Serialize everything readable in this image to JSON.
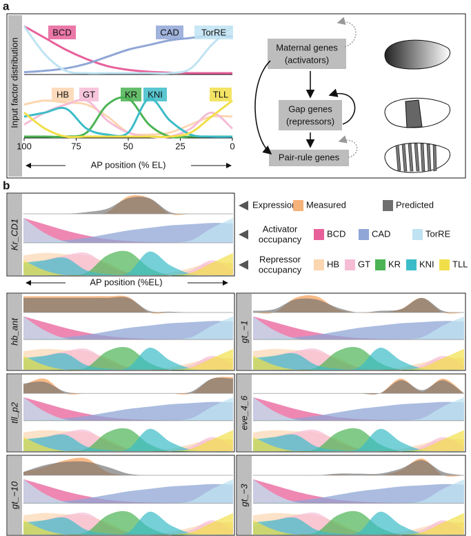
{
  "panel_a": {
    "label": "a",
    "y_label": "Input factor distribution",
    "x_label": "AP position (% EL)",
    "x": [
      100,
      90,
      80,
      70,
      60,
      50,
      40,
      30,
      20,
      10,
      0
    ],
    "xlim": [
      100,
      0
    ],
    "xticks": [
      100,
      75,
      50,
      25,
      0
    ],
    "activators": [
      {
        "name": "BCD",
        "color": "#e8609a",
        "values": [
          1,
          0.75,
          0.5,
          0.3,
          0.15,
          0.07,
          0.03,
          0.01,
          0,
          0,
          0
        ]
      },
      {
        "name": "CAD",
        "color": "#8fa6d6",
        "values": [
          0.02,
          0.05,
          0.1,
          0.2,
          0.35,
          0.5,
          0.6,
          0.7,
          0.75,
          0.8,
          0.78
        ]
      },
      {
        "name": "TorRE",
        "color": "#bfe3f2",
        "values": [
          1,
          0.4,
          0.05,
          0,
          0,
          0,
          0,
          0,
          0.1,
          0.6,
          1
        ]
      }
    ],
    "repressors": [
      {
        "name": "HB",
        "color": "#fbd6b0",
        "values": [
          0.8,
          0.9,
          0.85,
          0.8,
          0.5,
          0.1,
          0.05,
          0.1,
          0.3,
          0.5,
          0.5
        ]
      },
      {
        "name": "GT",
        "color": "#f6bcd6",
        "values": [
          0.3,
          0.6,
          0.8,
          0.9,
          0.4,
          0.1,
          0,
          0,
          0.2,
          0.6,
          0.2
        ]
      },
      {
        "name": "KR",
        "color": "#4bb354",
        "values": [
          0,
          0,
          0,
          0.1,
          0.8,
          0.95,
          0.3,
          0,
          0,
          0,
          0
        ]
      },
      {
        "name": "KNI",
        "color": "#3cbcc8",
        "values": [
          0.5,
          0.6,
          0.7,
          0.2,
          0.05,
          0.1,
          0.95,
          0.4,
          0.05,
          0,
          0
        ]
      },
      {
        "name": "TLL",
        "color": "#f1df4a",
        "values": [
          0.6,
          0.2,
          0,
          0,
          0,
          0,
          0,
          0,
          0.1,
          0.5,
          0.9
        ]
      }
    ],
    "network": {
      "maternal": [
        "Maternal genes",
        "(activators)"
      ],
      "gap": [
        "Gap genes",
        "(repressors)"
      ],
      "pair_rule": "Pair-rule genes"
    }
  },
  "panel_b": {
    "label": "b",
    "x_label": "AP position (%EL)",
    "legend": {
      "expression": "Expression",
      "activator": [
        "Activator",
        "occupancy"
      ],
      "repressor": [
        "Repressor",
        "occupancy"
      ]
    },
    "measured": {
      "name": "Measured",
      "color": "#f7b27a"
    },
    "predicted": {
      "name": "Predicted",
      "color": "#6e6e6e"
    },
    "constructs": [
      {
        "name": "Kr_CD1",
        "measured": [
          0,
          0,
          0,
          0,
          0.1,
          1,
          0.9,
          0,
          0,
          0,
          0
        ],
        "predicted": [
          0,
          0,
          0,
          0.1,
          0.3,
          0.9,
          0.9,
          0.1,
          0,
          0,
          0
        ]
      },
      {
        "name": "hb_ant",
        "measured": [
          1,
          1,
          1,
          1,
          1,
          0.95,
          0,
          0,
          0,
          0,
          0
        ],
        "predicted": [
          0.9,
          0.9,
          0.9,
          0.9,
          0.9,
          0.9,
          0.1,
          0.05,
          0,
          0,
          0
        ]
      },
      {
        "name": "gt_−1",
        "measured": [
          0,
          0,
          0.9,
          1,
          0.2,
          0,
          0,
          0.2,
          0.9,
          0,
          0
        ],
        "predicted": [
          0.1,
          0.2,
          0.8,
          0.8,
          0.3,
          0,
          0.1,
          0.2,
          0.9,
          0.1,
          0
        ]
      },
      {
        "name": "tll_p2",
        "measured": [
          0.5,
          0.9,
          0,
          0,
          0,
          0,
          0,
          0,
          0,
          0.9,
          1
        ],
        "predicted": [
          0.6,
          0.7,
          0.1,
          0,
          0,
          0,
          0,
          0,
          0.1,
          0.9,
          0.9
        ]
      },
      {
        "name": "eve_4_6",
        "measured": [
          0,
          0,
          0,
          0,
          0,
          0,
          0,
          0.9,
          0.1,
          0.9,
          0
        ],
        "predicted": [
          0,
          0,
          0,
          0,
          0,
          0,
          0,
          0.8,
          0.2,
          0.8,
          0
        ]
      },
      {
        "name": "gt_−10",
        "measured": [
          0.2,
          0.5,
          0.9,
          1,
          0.2,
          0,
          0,
          0,
          0,
          0,
          0
        ],
        "predicted": [
          0.2,
          0.6,
          0.8,
          0.8,
          0.5,
          0.1,
          0,
          0,
          0,
          0,
          0
        ]
      },
      {
        "name": "gt_−3",
        "measured": [
          0,
          0,
          0,
          0,
          0.05,
          0,
          0,
          0.3,
          1,
          0,
          0
        ],
        "predicted": [
          0,
          0,
          0,
          0,
          0.1,
          0.1,
          0.1,
          0.4,
          0.9,
          0.2,
          0
        ]
      }
    ]
  }
}
